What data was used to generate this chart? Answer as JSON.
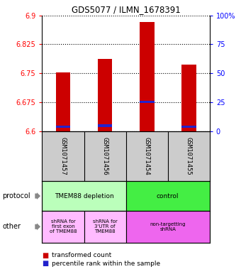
{
  "title": "GDS5077 / ILMN_1678391",
  "samples": [
    "GSM1071457",
    "GSM1071456",
    "GSM1071454",
    "GSM1071455"
  ],
  "red_values": [
    6.753,
    6.787,
    6.882,
    6.772
  ],
  "blue_values": [
    6.608,
    6.611,
    6.673,
    6.609
  ],
  "ylim_min": 6.6,
  "ylim_max": 6.9,
  "yticks_left": [
    6.6,
    6.675,
    6.75,
    6.825,
    6.9
  ],
  "yticks_right": [
    0,
    25,
    50,
    75,
    100
  ],
  "bar_width": 0.35,
  "red_color": "#cc0000",
  "blue_color": "#2222cc",
  "protocol_labels": [
    "TMEM88 depletion",
    "control"
  ],
  "protocol_colors": [
    "#bbffbb",
    "#44ee44"
  ],
  "other_labels": [
    "shRNA for\nfirst exon\nof TMEM88",
    "shRNA for\n3'UTR of\nTMEM88",
    "non-targetting\nshRNA"
  ],
  "other_colors": [
    "#ffbbff",
    "#ffbbff",
    "#ee66ee"
  ],
  "sample_bg": "#cccccc",
  "legend_red": "transformed count",
  "legend_blue": "percentile rank within the sample",
  "bg": "#ffffff"
}
